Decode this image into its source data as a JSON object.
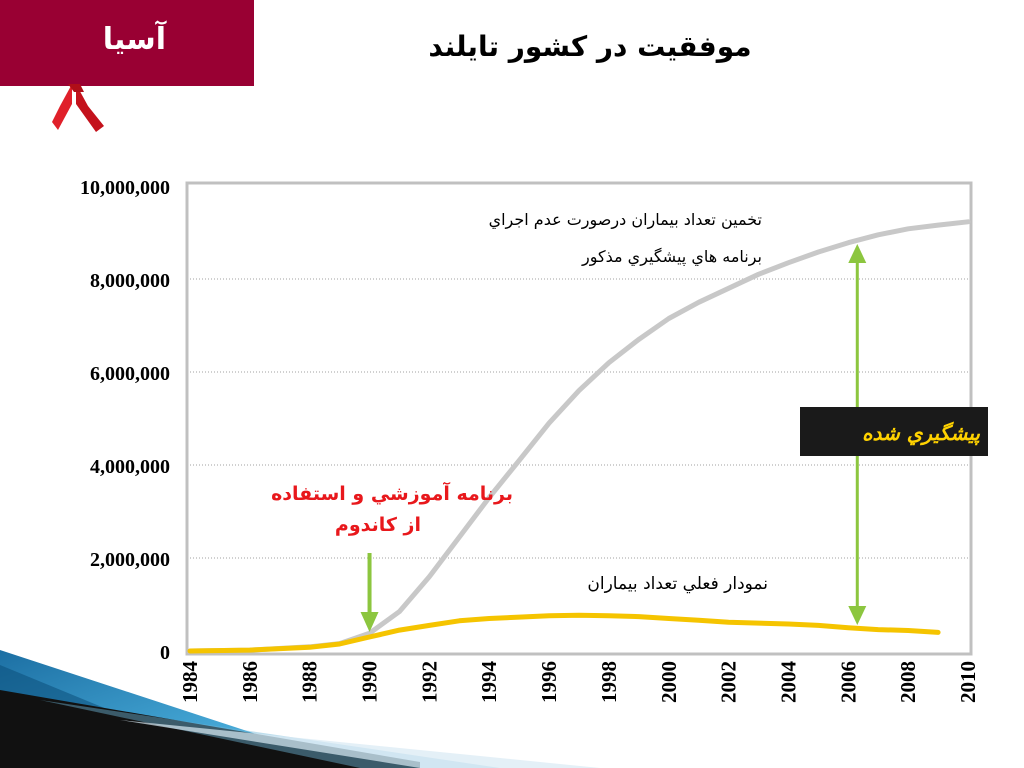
{
  "header": {
    "region_label": "آسيا",
    "title": "موفقيت در کشور تايلند"
  },
  "colors": {
    "header_box": "#990033",
    "projected_line": "#c8c8c8",
    "actual_line": "#f5c400",
    "arrow": "#8cc63f",
    "callout_bg": "#1a1a1a",
    "callout_text": "#ffd200",
    "annotation_red": "#e8181c"
  },
  "icons": {
    "ribbon": "red-ribbon-icon"
  },
  "chart_data": {
    "type": "line",
    "title": "موفقيت در کشور تايلند",
    "xlabel": "",
    "ylabel": "",
    "xlim": [
      1984,
      2010
    ],
    "ylim": [
      0,
      10000000
    ],
    "x_ticks": [
      "1984",
      "1986",
      "1988",
      "1990",
      "1992",
      "1994",
      "1996",
      "1998",
      "2000",
      "2002",
      "2004",
      "2006",
      "2008",
      "2010"
    ],
    "y_ticks": [
      "0",
      "2,000,000",
      "4,000,000",
      "6,000,000",
      "8,000,000",
      "10,000,000"
    ],
    "grid": true,
    "series": [
      {
        "name": "تخمين تعداد بيماران درصورت عدم اجراي برنامه هاي پيشگيري مذکور",
        "color": "#c8c8c8",
        "x": [
          1984,
          1986,
          1988,
          1989,
          1990,
          1991,
          1992,
          1993,
          1994,
          1995,
          1996,
          1997,
          1998,
          1999,
          2000,
          2001,
          2002,
          2003,
          2004,
          2005,
          2006,
          2007,
          2008,
          2009,
          2010
        ],
        "y": [
          0,
          20000,
          90000,
          160000,
          380000,
          850000,
          1600000,
          2450000,
          3300000,
          4100000,
          4900000,
          5600000,
          6200000,
          6700000,
          7150000,
          7500000,
          7800000,
          8100000,
          8350000,
          8580000,
          8780000,
          8950000,
          9080000,
          9160000,
          9230000
        ]
      },
      {
        "name": "نمودار فعلي تعداد بيماران",
        "color": "#f5c400",
        "x": [
          1984,
          1986,
          1988,
          1989,
          1990,
          1991,
          1992,
          1993,
          1994,
          1995,
          1996,
          1997,
          1998,
          1999,
          2000,
          2001,
          2002,
          2003,
          2004,
          2005,
          2006,
          2007,
          2008,
          2009
        ],
        "y": [
          0,
          20000,
          80000,
          150000,
          300000,
          450000,
          550000,
          650000,
          700000,
          730000,
          760000,
          770000,
          760000,
          740000,
          700000,
          660000,
          620000,
          600000,
          580000,
          550000,
          500000,
          460000,
          440000,
          400000
        ]
      }
    ],
    "annotations": {
      "projected_label_line1": "تخمين تعداد بيماران درصورت عدم اجراي",
      "projected_label_line2": "برنامه هاي پيشگيري مذکور",
      "actual_label": "نمودار فعلي تعداد بيماران",
      "program_label_line1": "برنامه آموزشي و استفاده",
      "program_label_line2": "از کاندوم",
      "prevented_label": "پيشگيري شده",
      "program_arrow_year": 1990,
      "prevented_arrow_year": 2006.3
    }
  }
}
